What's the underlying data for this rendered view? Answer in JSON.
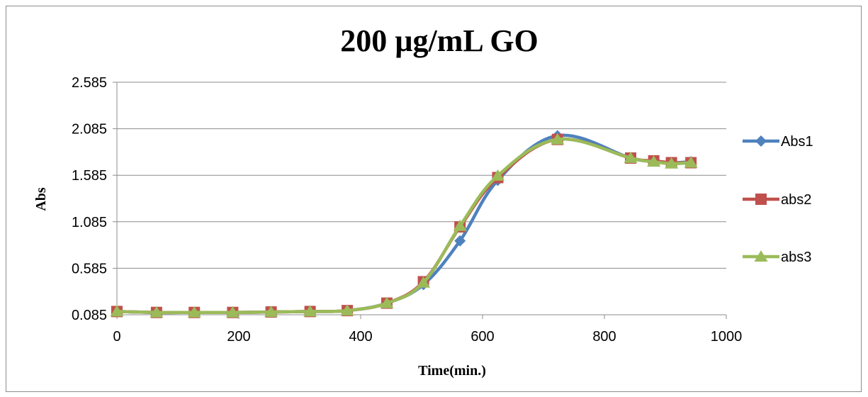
{
  "chart_data": {
    "type": "line",
    "title": "200 µg/mL GO",
    "xlabel": "Time(min.)",
    "ylabel": "Abs",
    "xlim": [
      0,
      1000
    ],
    "ylim": [
      0.085,
      2.585
    ],
    "xticks": [
      0,
      200,
      400,
      600,
      800,
      1000
    ],
    "yticks": [
      0.085,
      0.585,
      1.085,
      1.585,
      2.085,
      2.585
    ],
    "ytick_labels": [
      "0.085",
      "0.585",
      "1.085",
      "1.585",
      "2.085",
      "2.585"
    ],
    "grid": "horizontal",
    "legend_position": "right",
    "series": [
      {
        "name": "Abs1",
        "color": "#4F81BD",
        "marker": "diamond",
        "x": [
          0,
          65,
          127,
          190,
          253,
          317,
          378,
          443,
          503,
          563,
          625,
          723,
          843,
          881,
          910,
          942
        ],
        "y": [
          0.12,
          0.11,
          0.11,
          0.11,
          0.115,
          0.12,
          0.13,
          0.21,
          0.41,
          0.88,
          1.53,
          2.01,
          1.77,
          1.74,
          1.72,
          1.73
        ]
      },
      {
        "name": "abs2",
        "color": "#C0504D",
        "marker": "square",
        "x": [
          0,
          65,
          127,
          190,
          253,
          317,
          378,
          443,
          503,
          563,
          625,
          723,
          843,
          881,
          910,
          942
        ],
        "y": [
          0.12,
          0.11,
          0.11,
          0.11,
          0.115,
          0.12,
          0.13,
          0.21,
          0.44,
          1.03,
          1.56,
          1.97,
          1.77,
          1.74,
          1.72,
          1.72
        ]
      },
      {
        "name": "abs3",
        "color": "#9BBB59",
        "marker": "triangle",
        "x": [
          0,
          65,
          127,
          190,
          253,
          317,
          378,
          443,
          503,
          563,
          625,
          723,
          843,
          881,
          910,
          942
        ],
        "y": [
          0.12,
          0.11,
          0.11,
          0.11,
          0.115,
          0.12,
          0.13,
          0.21,
          0.43,
          1.04,
          1.58,
          1.97,
          1.77,
          1.73,
          1.71,
          1.72
        ]
      }
    ]
  }
}
